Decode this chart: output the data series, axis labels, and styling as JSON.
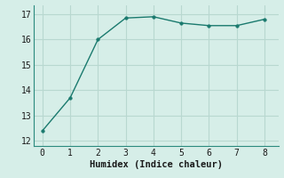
{
  "x": [
    0,
    1,
    2,
    3,
    4,
    5,
    6,
    7,
    8
  ],
  "y": [
    12.4,
    13.7,
    16.0,
    16.85,
    16.9,
    16.65,
    16.55,
    16.55,
    16.8
  ],
  "line_color": "#1a7a6e",
  "marker": "o",
  "marker_size": 2.5,
  "linewidth": 1.0,
  "xlabel": "Humidex (Indice chaleur)",
  "xlabel_fontsize": 7.5,
  "xlim": [
    -0.3,
    8.5
  ],
  "ylim": [
    11.8,
    17.35
  ],
  "yticks": [
    12,
    13,
    14,
    15,
    16,
    17
  ],
  "xticks": [
    0,
    1,
    2,
    3,
    4,
    5,
    6,
    7,
    8
  ],
  "bg_color": "#d6eee8",
  "grid_color": "#b8d8d0",
  "tick_fontsize": 7,
  "spine_color": "#2a8a7e"
}
